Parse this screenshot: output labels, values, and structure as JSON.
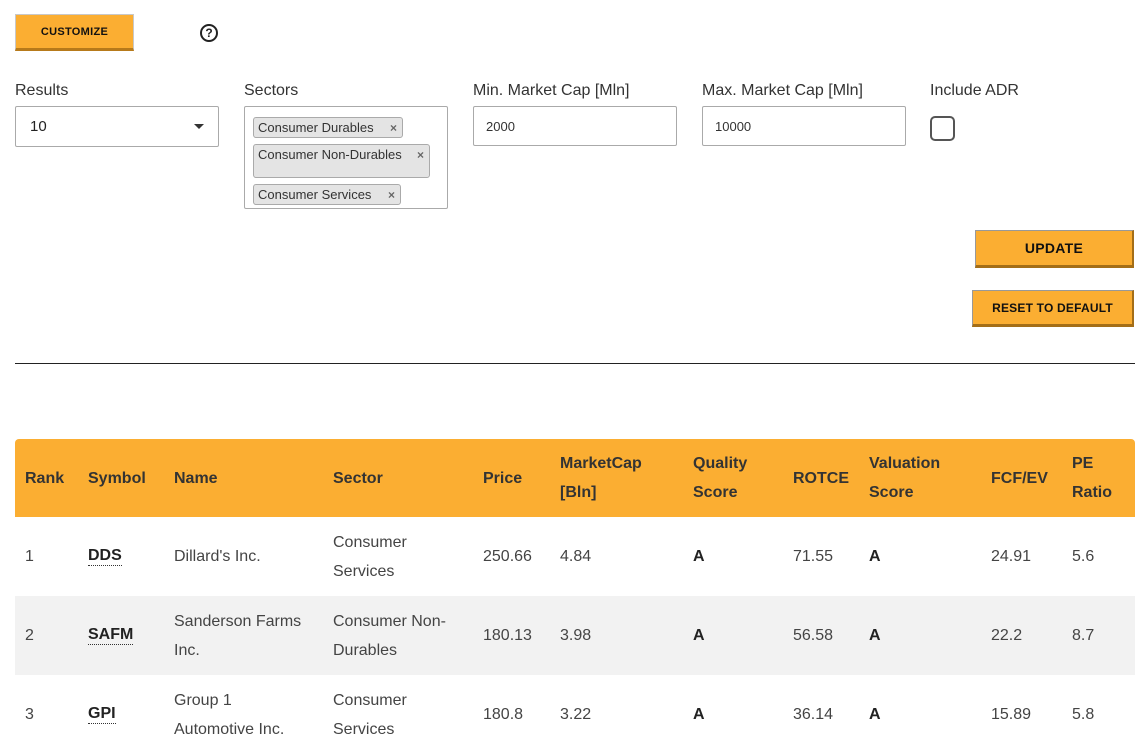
{
  "toolbar": {
    "customize_label": "CUSTOMIZE",
    "help_glyph": "?"
  },
  "filters": {
    "results": {
      "label": "Results",
      "value": "10"
    },
    "sectors": {
      "label": "Sectors",
      "chips": [
        "Consumer Durables",
        "Consumer Non-Durables",
        "Consumer Services"
      ],
      "remove_glyph": "×"
    },
    "min_cap": {
      "label": "Min. Market Cap [Mln]",
      "value": "2000"
    },
    "max_cap": {
      "label": "Max. Market Cap [Mln]",
      "value": "10000"
    },
    "adr": {
      "label": "Include ADR",
      "checked": false
    }
  },
  "actions": {
    "update_label": "UPDATE",
    "reset_label": "RESET TO DEFAULT"
  },
  "table": {
    "headers": {
      "rank": "Rank",
      "symbol": "Symbol",
      "name": "Name",
      "sector": "Sector",
      "price": "Price",
      "marketcap": "MarketCap [Bln]",
      "quality": "Quality Score",
      "rotce": "ROTCE",
      "valuation": "Valuation Score",
      "fcfev": "FCF/EV",
      "pe": "PE Ratio"
    },
    "rows": [
      {
        "rank": "1",
        "symbol": "DDS",
        "name": "Dillard's Inc.",
        "sector": "Consumer Services",
        "price": "250.66",
        "marketcap": "4.84",
        "quality": "A",
        "rotce": "71.55",
        "valuation": "A",
        "fcfev": "24.91",
        "pe": "5.6"
      },
      {
        "rank": "2",
        "symbol": "SAFM",
        "name": "Sanderson Farms Inc.",
        "sector": "Consumer Non-Durables",
        "price": "180.13",
        "marketcap": "3.98",
        "quality": "A",
        "rotce": "56.58",
        "valuation": "A",
        "fcfev": "22.2",
        "pe": "8.7"
      },
      {
        "rank": "3",
        "symbol": "GPI",
        "name": "Group 1 Automotive Inc.",
        "sector": "Consumer Services",
        "price": "180.8",
        "marketcap": "3.22",
        "quality": "A",
        "rotce": "36.14",
        "valuation": "A",
        "fcfev": "15.89",
        "pe": "5.8"
      }
    ]
  }
}
